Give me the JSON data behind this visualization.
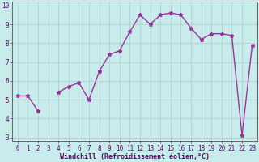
{
  "x": [
    0,
    1,
    2,
    3,
    4,
    5,
    6,
    7,
    8,
    9,
    10,
    11,
    12,
    13,
    14,
    15,
    16,
    17,
    18,
    19,
    20,
    21,
    22,
    23
  ],
  "y": [
    5.2,
    5.2,
    4.4,
    null,
    5.4,
    5.7,
    5.9,
    5.0,
    6.5,
    7.4,
    7.6,
    8.6,
    9.5,
    9.0,
    9.5,
    9.6,
    9.5,
    8.8,
    8.2,
    8.5,
    8.5,
    8.4,
    3.1,
    7.9
  ],
  "line_color": "#993399",
  "marker": "*",
  "marker_size": 3.5,
  "background_color": "#c8ecec",
  "grid_color": "#b0c8c8",
  "xlabel": "Windchill (Refroidissement éolien,°C)",
  "xlabel_fontsize": 6.0,
  "ylim": [
    2.8,
    10.2
  ],
  "xlim": [
    -0.5,
    23.5
  ],
  "yticks": [
    3,
    4,
    5,
    6,
    7,
    8,
    9,
    10
  ],
  "xticks": [
    0,
    1,
    2,
    3,
    4,
    5,
    6,
    7,
    8,
    9,
    10,
    11,
    12,
    13,
    14,
    15,
    16,
    17,
    18,
    19,
    20,
    21,
    22,
    23
  ],
  "tick_fontsize": 5.5,
  "line_width": 1.0,
  "spine_color": "#666666"
}
